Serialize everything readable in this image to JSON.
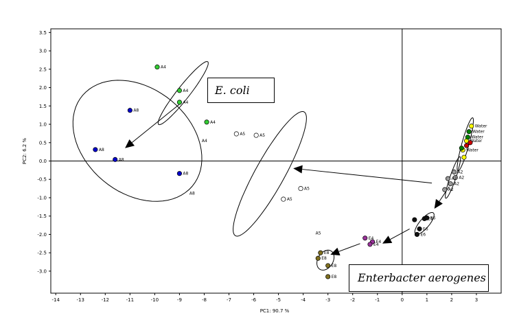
{
  "chart_data": {
    "type": "scatter",
    "xlabel": "PC1: 90.7 %",
    "ylabel": "PC2: 6.2 %",
    "xlim": [
      -14.2,
      4
    ],
    "ylim": [
      -3.6,
      3.6
    ],
    "xticks": [
      -14,
      -13,
      -12,
      -11,
      -10,
      -9,
      -8,
      -7,
      -6,
      -5,
      -4,
      -3,
      -2,
      -1,
      0,
      1,
      2,
      3
    ],
    "yticks": [
      3.5,
      3.0,
      2.5,
      2.0,
      1.5,
      1.0,
      0.5,
      0.0,
      -0.5,
      -1.0,
      -1.5,
      -2.0,
      -2.5,
      -3.0
    ],
    "xtick_labels": [
      "-14",
      "-13",
      "-12",
      "-11",
      "-10",
      "-9",
      "-8",
      "-7",
      "-6",
      "-5",
      "-4",
      "-3",
      "-2",
      "-1",
      "0",
      "1",
      "2",
      "3"
    ],
    "ytick_labels": [
      "3.5",
      "3.0",
      "2.5",
      "2.0",
      "1.5",
      "1.0",
      "0.5",
      "0.0",
      "-0.5",
      "-1.0",
      "-1.5",
      "-2.0",
      "-2.5",
      "-3.0"
    ],
    "reference_lines": {
      "x": 0,
      "y": 0
    },
    "annotations": [
      "E. coli",
      "Enterbacter aerogenes"
    ],
    "series": [
      {
        "color": "#0000cc",
        "points": [
          {
            "x": -11.0,
            "y": 1.38,
            "label": "A8"
          },
          {
            "x": -12.4,
            "y": 0.31,
            "label": "A8"
          },
          {
            "x": -11.6,
            "y": 0.04,
            "label": "A8"
          },
          {
            "x": -9.0,
            "y": -0.34,
            "label": "A8"
          }
        ],
        "extra_labels": [
          {
            "x": -8.6,
            "y": -0.92,
            "label": "A8"
          }
        ]
      },
      {
        "color": "#33cc33",
        "points": [
          {
            "x": -9.9,
            "y": 2.56,
            "label": "A4"
          },
          {
            "x": -9.0,
            "y": 1.92,
            "label": "A4"
          },
          {
            "x": -9.0,
            "y": 1.6,
            "label": "A4"
          },
          {
            "x": -7.9,
            "y": 1.06,
            "label": "A4"
          }
        ],
        "extra_labels": [
          {
            "x": -8.1,
            "y": 0.51,
            "label": "A4"
          }
        ]
      },
      {
        "color": "#ffffff",
        "points": [
          {
            "x": -6.7,
            "y": 0.74,
            "label": "A5"
          },
          {
            "x": -5.9,
            "y": 0.7,
            "label": "A5"
          },
          {
            "x": -4.1,
            "y": -0.75,
            "label": "A5"
          },
          {
            "x": -4.8,
            "y": -1.04,
            "label": "A5"
          }
        ],
        "extra_labels": [
          {
            "x": -3.5,
            "y": -2.0,
            "label": "A5"
          }
        ]
      },
      {
        "color": "#999999",
        "points": [
          {
            "x": 2.1,
            "y": -0.3,
            "label": "A2"
          },
          {
            "x": 2.15,
            "y": -0.45,
            "label": "A2"
          },
          {
            "x": 1.85,
            "y": -0.48,
            "label": "A2"
          },
          {
            "x": 1.95,
            "y": -0.62,
            "label": "A2"
          },
          {
            "x": 1.72,
            "y": -0.78,
            "label": "A2"
          }
        ]
      },
      {
        "color": "#111111",
        "points": [
          {
            "x": 0.5,
            "y": -1.6,
            "label": ""
          },
          {
            "x": 0.9,
            "y": -1.57,
            "label": "E6"
          },
          {
            "x": 1.0,
            "y": -1.55,
            "label": "E6"
          },
          {
            "x": 0.7,
            "y": -1.85,
            "label": "E6"
          },
          {
            "x": 0.6,
            "y": -2.0,
            "label": "E6"
          }
        ]
      },
      {
        "color": "#993399",
        "points": [
          {
            "x": -1.5,
            "y": -2.1,
            "label": "E4"
          },
          {
            "x": -1.2,
            "y": -2.2,
            "label": "E4"
          },
          {
            "x": -1.3,
            "y": -2.27,
            "label": "E4"
          }
        ]
      },
      {
        "color": "#807020",
        "points": [
          {
            "x": -3.3,
            "y": -2.5,
            "label": "E8"
          },
          {
            "x": -3.4,
            "y": -2.65,
            "label": "E8"
          },
          {
            "x": -3.0,
            "y": -2.85,
            "label": "E8"
          },
          {
            "x": -3.0,
            "y": -3.15,
            "label": "E8"
          }
        ]
      },
      {
        "color": "#ffff00",
        "points": [
          {
            "x": 2.8,
            "y": 0.95,
            "label": "Water"
          },
          {
            "x": 2.45,
            "y": 0.3,
            "label": "Water"
          },
          {
            "x": 2.6,
            "y": 0.55,
            "label": "Water"
          },
          {
            "x": 2.5,
            "y": 0.1,
            "label": ""
          }
        ]
      },
      {
        "color": "#008000",
        "points": [
          {
            "x": 2.7,
            "y": 0.8,
            "label": "Water"
          },
          {
            "x": 2.65,
            "y": 0.65,
            "label": "Water"
          },
          {
            "x": 2.4,
            "y": 0.35,
            "label": ""
          }
        ]
      },
      {
        "color": "#cc0000",
        "points": [
          {
            "x": 2.75,
            "y": 0.5,
            "label": ""
          },
          {
            "x": 2.6,
            "y": 0.42,
            "label": ""
          }
        ]
      }
    ],
    "ellipses": [
      {
        "group": "A8",
        "cx": -10.7,
        "cy": 0.55,
        "rx": 2.95,
        "ry": 1.55,
        "angle_deg": -13
      },
      {
        "group": "A4",
        "cx": -8.85,
        "cy": 1.85,
        "rx": 1.4,
        "ry": 0.22,
        "angle_deg": 37
      },
      {
        "group": "A5",
        "cx": -5.35,
        "cy": -0.35,
        "rx": 2.3,
        "ry": 0.55,
        "angle_deg": 46
      },
      {
        "group": "E8",
        "cx": -3.1,
        "cy": -2.7,
        "rx": 0.4,
        "ry": 0.25,
        "angle_deg": 20
      },
      {
        "group": "E6",
        "cx": 0.9,
        "cy": -1.7,
        "rx": 0.5,
        "ry": 0.16,
        "angle_deg": 32
      },
      {
        "group": "A2",
        "cx": 2.05,
        "cy": -0.45,
        "rx": 0.65,
        "ry": 0.12,
        "angle_deg": 60
      },
      {
        "group": "Water",
        "cx": 2.55,
        "cy": 0.45,
        "rx": 0.8,
        "ry": 0.15,
        "angle_deg": 65
      }
    ],
    "arrows": [
      {
        "from": [
          -8.9,
          1.6
        ],
        "to": [
          -11.2,
          0.35
        ]
      },
      {
        "from": [
          1.2,
          -0.6
        ],
        "to": [
          -4.4,
          -0.2
        ]
      },
      {
        "from": [
          1.9,
          -0.7
        ],
        "to": [
          1.3,
          -1.3
        ]
      },
      {
        "from": [
          0.3,
          -1.85
        ],
        "to": [
          -0.8,
          -2.25
        ]
      },
      {
        "from": [
          -1.7,
          -2.25
        ],
        "to": [
          -2.9,
          -2.55
        ]
      }
    ]
  }
}
